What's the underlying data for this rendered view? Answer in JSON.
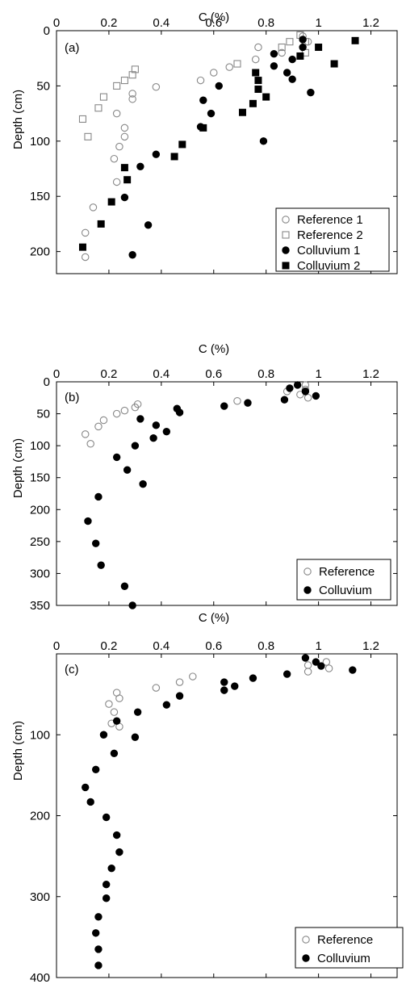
{
  "chart_data": [
    {
      "type": "scatter",
      "panel_label": "(a)",
      "xlabel": "C (%)",
      "ylabel": "Depth (cm)",
      "xlim": [
        0,
        1.3
      ],
      "ylim": [
        0,
        220
      ],
      "y_inverted": true,
      "x_axis_position": "top",
      "xticks": [
        0,
        0.2,
        0.4,
        0.6,
        0.8,
        1,
        1.2
      ],
      "xtick_labels": [
        "0",
        "0.2",
        "0.4",
        "0.6",
        "0.8",
        "1",
        "1.2"
      ],
      "yticks": [
        0,
        50,
        100,
        150,
        200
      ],
      "ytick_labels": [
        "0",
        "50",
        "100",
        "150",
        "200"
      ],
      "legend_position": "bottom-right",
      "series": [
        {
          "name": "Reference 1",
          "marker": "circle-open",
          "points": [
            [
              0.94,
              5
            ],
            [
              0.96,
              10
            ],
            [
              0.77,
              15
            ],
            [
              0.86,
              20
            ],
            [
              0.76,
              26
            ],
            [
              0.66,
              33
            ],
            [
              0.6,
              38
            ],
            [
              0.55,
              45
            ],
            [
              0.38,
              51
            ],
            [
              0.29,
              57
            ],
            [
              0.29,
              62
            ],
            [
              0.23,
              75
            ],
            [
              0.26,
              88
            ],
            [
              0.26,
              96
            ],
            [
              0.24,
              105
            ],
            [
              0.22,
              116
            ],
            [
              0.23,
              137
            ],
            [
              0.14,
              160
            ],
            [
              0.11,
              183
            ],
            [
              0.11,
              205
            ]
          ]
        },
        {
          "name": "Reference 2",
          "marker": "square-open",
          "points": [
            [
              0.93,
              4
            ],
            [
              0.95,
              10
            ],
            [
              0.89,
              10
            ],
            [
              0.86,
              15
            ],
            [
              0.95,
              20
            ],
            [
              0.69,
              30
            ],
            [
              0.3,
              35
            ],
            [
              0.29,
              40
            ],
            [
              0.26,
              45
            ],
            [
              0.23,
              50
            ],
            [
              0.18,
              60
            ],
            [
              0.16,
              70
            ],
            [
              0.1,
              80
            ],
            [
              0.12,
              96
            ]
          ]
        },
        {
          "name": "Colluvium 1",
          "marker": "circle-filled",
          "points": [
            [
              0.94,
              8
            ],
            [
              0.94,
              15
            ],
            [
              0.83,
              21
            ],
            [
              0.9,
              26
            ],
            [
              0.83,
              32
            ],
            [
              0.88,
              38
            ],
            [
              0.9,
              44
            ],
            [
              0.62,
              50
            ],
            [
              0.97,
              56
            ],
            [
              0.56,
              63
            ],
            [
              0.59,
              75
            ],
            [
              0.55,
              87
            ],
            [
              0.79,
              100
            ],
            [
              0.38,
              112
            ],
            [
              0.32,
              123
            ],
            [
              0.26,
              151
            ],
            [
              0.35,
              176
            ],
            [
              0.29,
              203
            ]
          ]
        },
        {
          "name": "Colluvium 2",
          "marker": "square-filled",
          "points": [
            [
              1.14,
              9
            ],
            [
              1.0,
              15
            ],
            [
              0.93,
              23
            ],
            [
              1.06,
              30
            ],
            [
              0.76,
              38
            ],
            [
              0.77,
              45
            ],
            [
              0.77,
              53
            ],
            [
              0.8,
              60
            ],
            [
              0.75,
              66
            ],
            [
              0.71,
              74
            ],
            [
              0.56,
              88
            ],
            [
              0.48,
              103
            ],
            [
              0.45,
              114
            ],
            [
              0.26,
              124
            ],
            [
              0.27,
              135
            ],
            [
              0.21,
              155
            ],
            [
              0.17,
              175
            ],
            [
              0.1,
              196
            ]
          ]
        }
      ]
    },
    {
      "type": "scatter",
      "panel_label": "(b)",
      "xlabel": "C (%)",
      "ylabel": "Depth (cm)",
      "xlim": [
        0,
        1.3
      ],
      "ylim": [
        0,
        350
      ],
      "y_inverted": true,
      "x_axis_position": "top",
      "xticks": [
        0,
        0.2,
        0.4,
        0.6,
        0.8,
        1,
        1.2
      ],
      "xtick_labels": [
        "0",
        "0.2",
        "0.4",
        "0.6",
        "0.8",
        "1",
        "1.2"
      ],
      "yticks": [
        0,
        50,
        100,
        150,
        200,
        250,
        300,
        350
      ],
      "ytick_labels": [
        "0",
        "50",
        "100",
        "150",
        "200",
        "250",
        "300",
        "350"
      ],
      "legend_position": "bottom-right",
      "series": [
        {
          "name": "Reference",
          "marker": "circle-open",
          "points": [
            [
              0.95,
              5
            ],
            [
              0.95,
              12
            ],
            [
              0.88,
              15
            ],
            [
              0.93,
              20
            ],
            [
              0.96,
              25
            ],
            [
              0.69,
              30
            ],
            [
              0.31,
              35
            ],
            [
              0.3,
              40
            ],
            [
              0.26,
              45
            ],
            [
              0.23,
              50
            ],
            [
              0.18,
              60
            ],
            [
              0.16,
              70
            ],
            [
              0.11,
              82
            ],
            [
              0.13,
              97
            ]
          ]
        },
        {
          "name": "Colluvium",
          "marker": "circle-filled",
          "points": [
            [
              0.92,
              5
            ],
            [
              0.89,
              10
            ],
            [
              0.95,
              15
            ],
            [
              0.99,
              22
            ],
            [
              0.87,
              28
            ],
            [
              0.73,
              33
            ],
            [
              0.64,
              38
            ],
            [
              0.46,
              42
            ],
            [
              0.47,
              48
            ],
            [
              0.32,
              58
            ],
            [
              0.38,
              68
            ],
            [
              0.42,
              78
            ],
            [
              0.37,
              88
            ],
            [
              0.3,
              100
            ],
            [
              0.23,
              118
            ],
            [
              0.27,
              138
            ],
            [
              0.33,
              160
            ],
            [
              0.16,
              180
            ],
            [
              0.12,
              218
            ],
            [
              0.15,
              253
            ],
            [
              0.17,
              287
            ],
            [
              0.26,
              320
            ],
            [
              0.29,
              350
            ]
          ]
        }
      ]
    },
    {
      "type": "scatter",
      "panel_label": "(c)",
      "xlabel": "C (%)",
      "ylabel": "Depth (cm)",
      "xlim": [
        0,
        1.3
      ],
      "ylim": [
        0,
        400
      ],
      "y_inverted": true,
      "x_axis_position": "top",
      "xticks": [
        0,
        0.2,
        0.4,
        0.6,
        0.8,
        1,
        1.2
      ],
      "xtick_labels": [
        "0",
        "0.2",
        "0.4",
        "0.6",
        "0.8",
        "1",
        "1.2"
      ],
      "yticks": [
        100,
        200,
        300,
        400
      ],
      "ytick_labels": [
        "100",
        "200",
        "300",
        "400"
      ],
      "legend_position": "bottom-right",
      "series": [
        {
          "name": "Reference",
          "marker": "circle-open",
          "points": [
            [
              1.03,
              10
            ],
            [
              0.96,
              14
            ],
            [
              1.04,
              18
            ],
            [
              0.96,
              22
            ],
            [
              0.52,
              28
            ],
            [
              0.47,
              35
            ],
            [
              0.38,
              42
            ],
            [
              0.23,
              48
            ],
            [
              0.24,
              55
            ],
            [
              0.2,
              62
            ],
            [
              0.22,
              72
            ],
            [
              0.21,
              86
            ],
            [
              0.24,
              90
            ]
          ]
        },
        {
          "name": "Colluvium",
          "marker": "circle-filled",
          "points": [
            [
              0.95,
              5
            ],
            [
              0.99,
              10
            ],
            [
              1.01,
              15
            ],
            [
              1.13,
              20
            ],
            [
              0.88,
              25
            ],
            [
              0.75,
              30
            ],
            [
              0.64,
              35
            ],
            [
              0.64,
              45
            ],
            [
              0.68,
              40
            ],
            [
              0.47,
              52
            ],
            [
              0.42,
              63
            ],
            [
              0.31,
              72
            ],
            [
              0.23,
              83
            ],
            [
              0.18,
              100
            ],
            [
              0.3,
              103
            ],
            [
              0.22,
              123
            ],
            [
              0.15,
              143
            ],
            [
              0.11,
              165
            ],
            [
              0.13,
              183
            ],
            [
              0.19,
              202
            ],
            [
              0.23,
              224
            ],
            [
              0.24,
              245
            ],
            [
              0.21,
              265
            ],
            [
              0.19,
              285
            ],
            [
              0.19,
              302
            ],
            [
              0.16,
              325
            ],
            [
              0.15,
              345
            ],
            [
              0.16,
              365
            ],
            [
              0.16,
              385
            ]
          ]
        }
      ]
    }
  ]
}
